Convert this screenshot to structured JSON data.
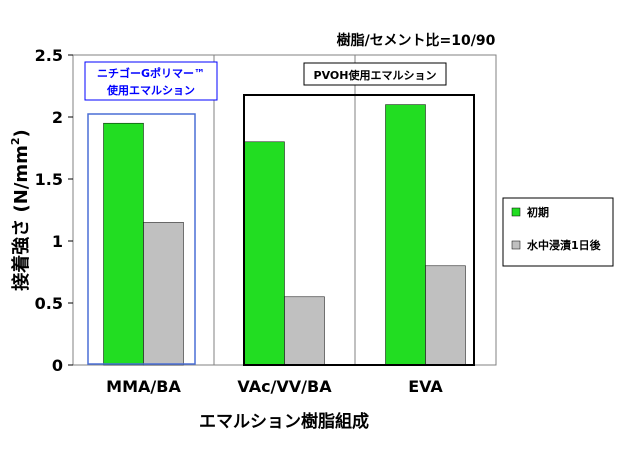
{
  "chart_data": {
    "type": "bar",
    "title": "",
    "ratio_note": "樹脂/セメント比=10/90",
    "xlabel": "エマルション樹脂組成",
    "ylabel_main": "接着強さ (N/mm",
    "ylabel_sup": "2",
    "ylabel_close": ")",
    "ylim": [
      0,
      2.5
    ],
    "yticks": [
      "0",
      "0.5",
      "1",
      "1.5",
      "2",
      "2.5"
    ],
    "categories": [
      "MMA/BA",
      "VAc/VV/BA",
      "EVA"
    ],
    "series": [
      {
        "name": "初期",
        "values": [
          1.95,
          1.8,
          2.1
        ],
        "color": "#22dd22"
      },
      {
        "name": "水中浸漬1日後",
        "values": [
          1.15,
          0.55,
          0.8
        ],
        "color": "#c0c0c0"
      }
    ],
    "grid": "vertical dividers between categories",
    "legend_position": "right",
    "annotations": [
      {
        "line1": "ニチゴーGポリマー™",
        "line2": "使用エマルション",
        "color": "#0000ff"
      },
      {
        "line1": "PVOH使用エマルション",
        "color": "#000000"
      }
    ]
  }
}
